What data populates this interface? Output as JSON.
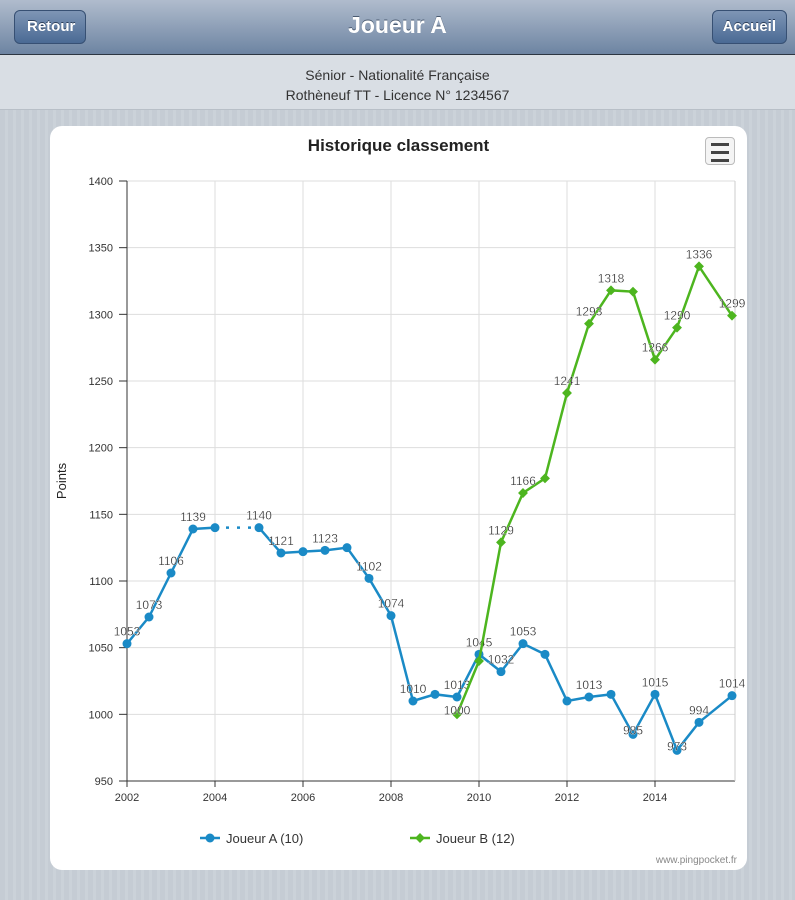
{
  "header": {
    "title": "Joueur A",
    "back_label": "Retour",
    "home_label": "Accueil"
  },
  "info": {
    "line1": "Sénior - Nationalité Française",
    "line2": "Rothèneuf TT - Licence N° 1234567"
  },
  "credit": "www.pingpocket.fr",
  "chart_data": {
    "type": "line",
    "title": "Historique classement",
    "xlabel": "",
    "ylabel": "Points",
    "ylim": [
      950,
      1400
    ],
    "xlim": [
      2002,
      2015.75
    ],
    "yticks": [
      950,
      1000,
      1050,
      1100,
      1150,
      1200,
      1250,
      1300,
      1350,
      1400
    ],
    "xticks": [
      2002,
      2004,
      2006,
      2008,
      2010,
      2012,
      2014
    ],
    "legend_position": "bottom",
    "series": [
      {
        "name": "Joueur A (10)",
        "color": "#1a8ac6",
        "marker": "circle",
        "x": [
          2002,
          2002.5,
          2003,
          2003.5,
          2004,
          2005,
          2005.5,
          2006,
          2006.5,
          2007,
          2007.5,
          2008,
          2008.5,
          2009,
          2009.5,
          2010,
          2010.5,
          2011,
          2011.5,
          2012,
          2012.5,
          2013,
          2013.5,
          2014,
          2014.5,
          2015,
          2015.75
        ],
        "values": [
          1053,
          1073,
          1106,
          1139,
          1140,
          1140,
          1121,
          1122,
          1123,
          1125,
          1102,
          1074,
          1010,
          1015,
          1013,
          1045,
          1032,
          1053,
          1045,
          1010,
          1013,
          1015,
          985,
          1015,
          973,
          994,
          1014
        ],
        "labels": [
          "1053",
          "1073",
          "1106",
          "1139",
          "",
          "1140",
          "1121",
          "",
          "1123",
          "",
          "1102",
          "1074",
          "1010",
          "",
          "1013",
          "1045",
          "1032",
          "1053",
          "",
          "",
          "1013",
          "",
          "985",
          "1015",
          "973",
          "994",
          "1014"
        ],
        "gap_after_index": 4
      },
      {
        "name": "Joueur B (12)",
        "color": "#4db51f",
        "marker": "diamond",
        "x": [
          2009.5,
          2010,
          2010.5,
          2011,
          2011.5,
          2012,
          2012.5,
          2013,
          2013.5,
          2014,
          2014.5,
          2015,
          2015.75
        ],
        "values": [
          1000,
          1040,
          1129,
          1166,
          1177,
          1241,
          1293,
          1318,
          1317,
          1266,
          1290,
          1336,
          1299
        ],
        "labels": [
          "1000",
          "",
          "1129",
          "1166",
          "",
          "1241",
          "1293",
          "1318",
          "",
          "1266",
          "1290",
          "1336",
          "1299"
        ]
      }
    ]
  }
}
